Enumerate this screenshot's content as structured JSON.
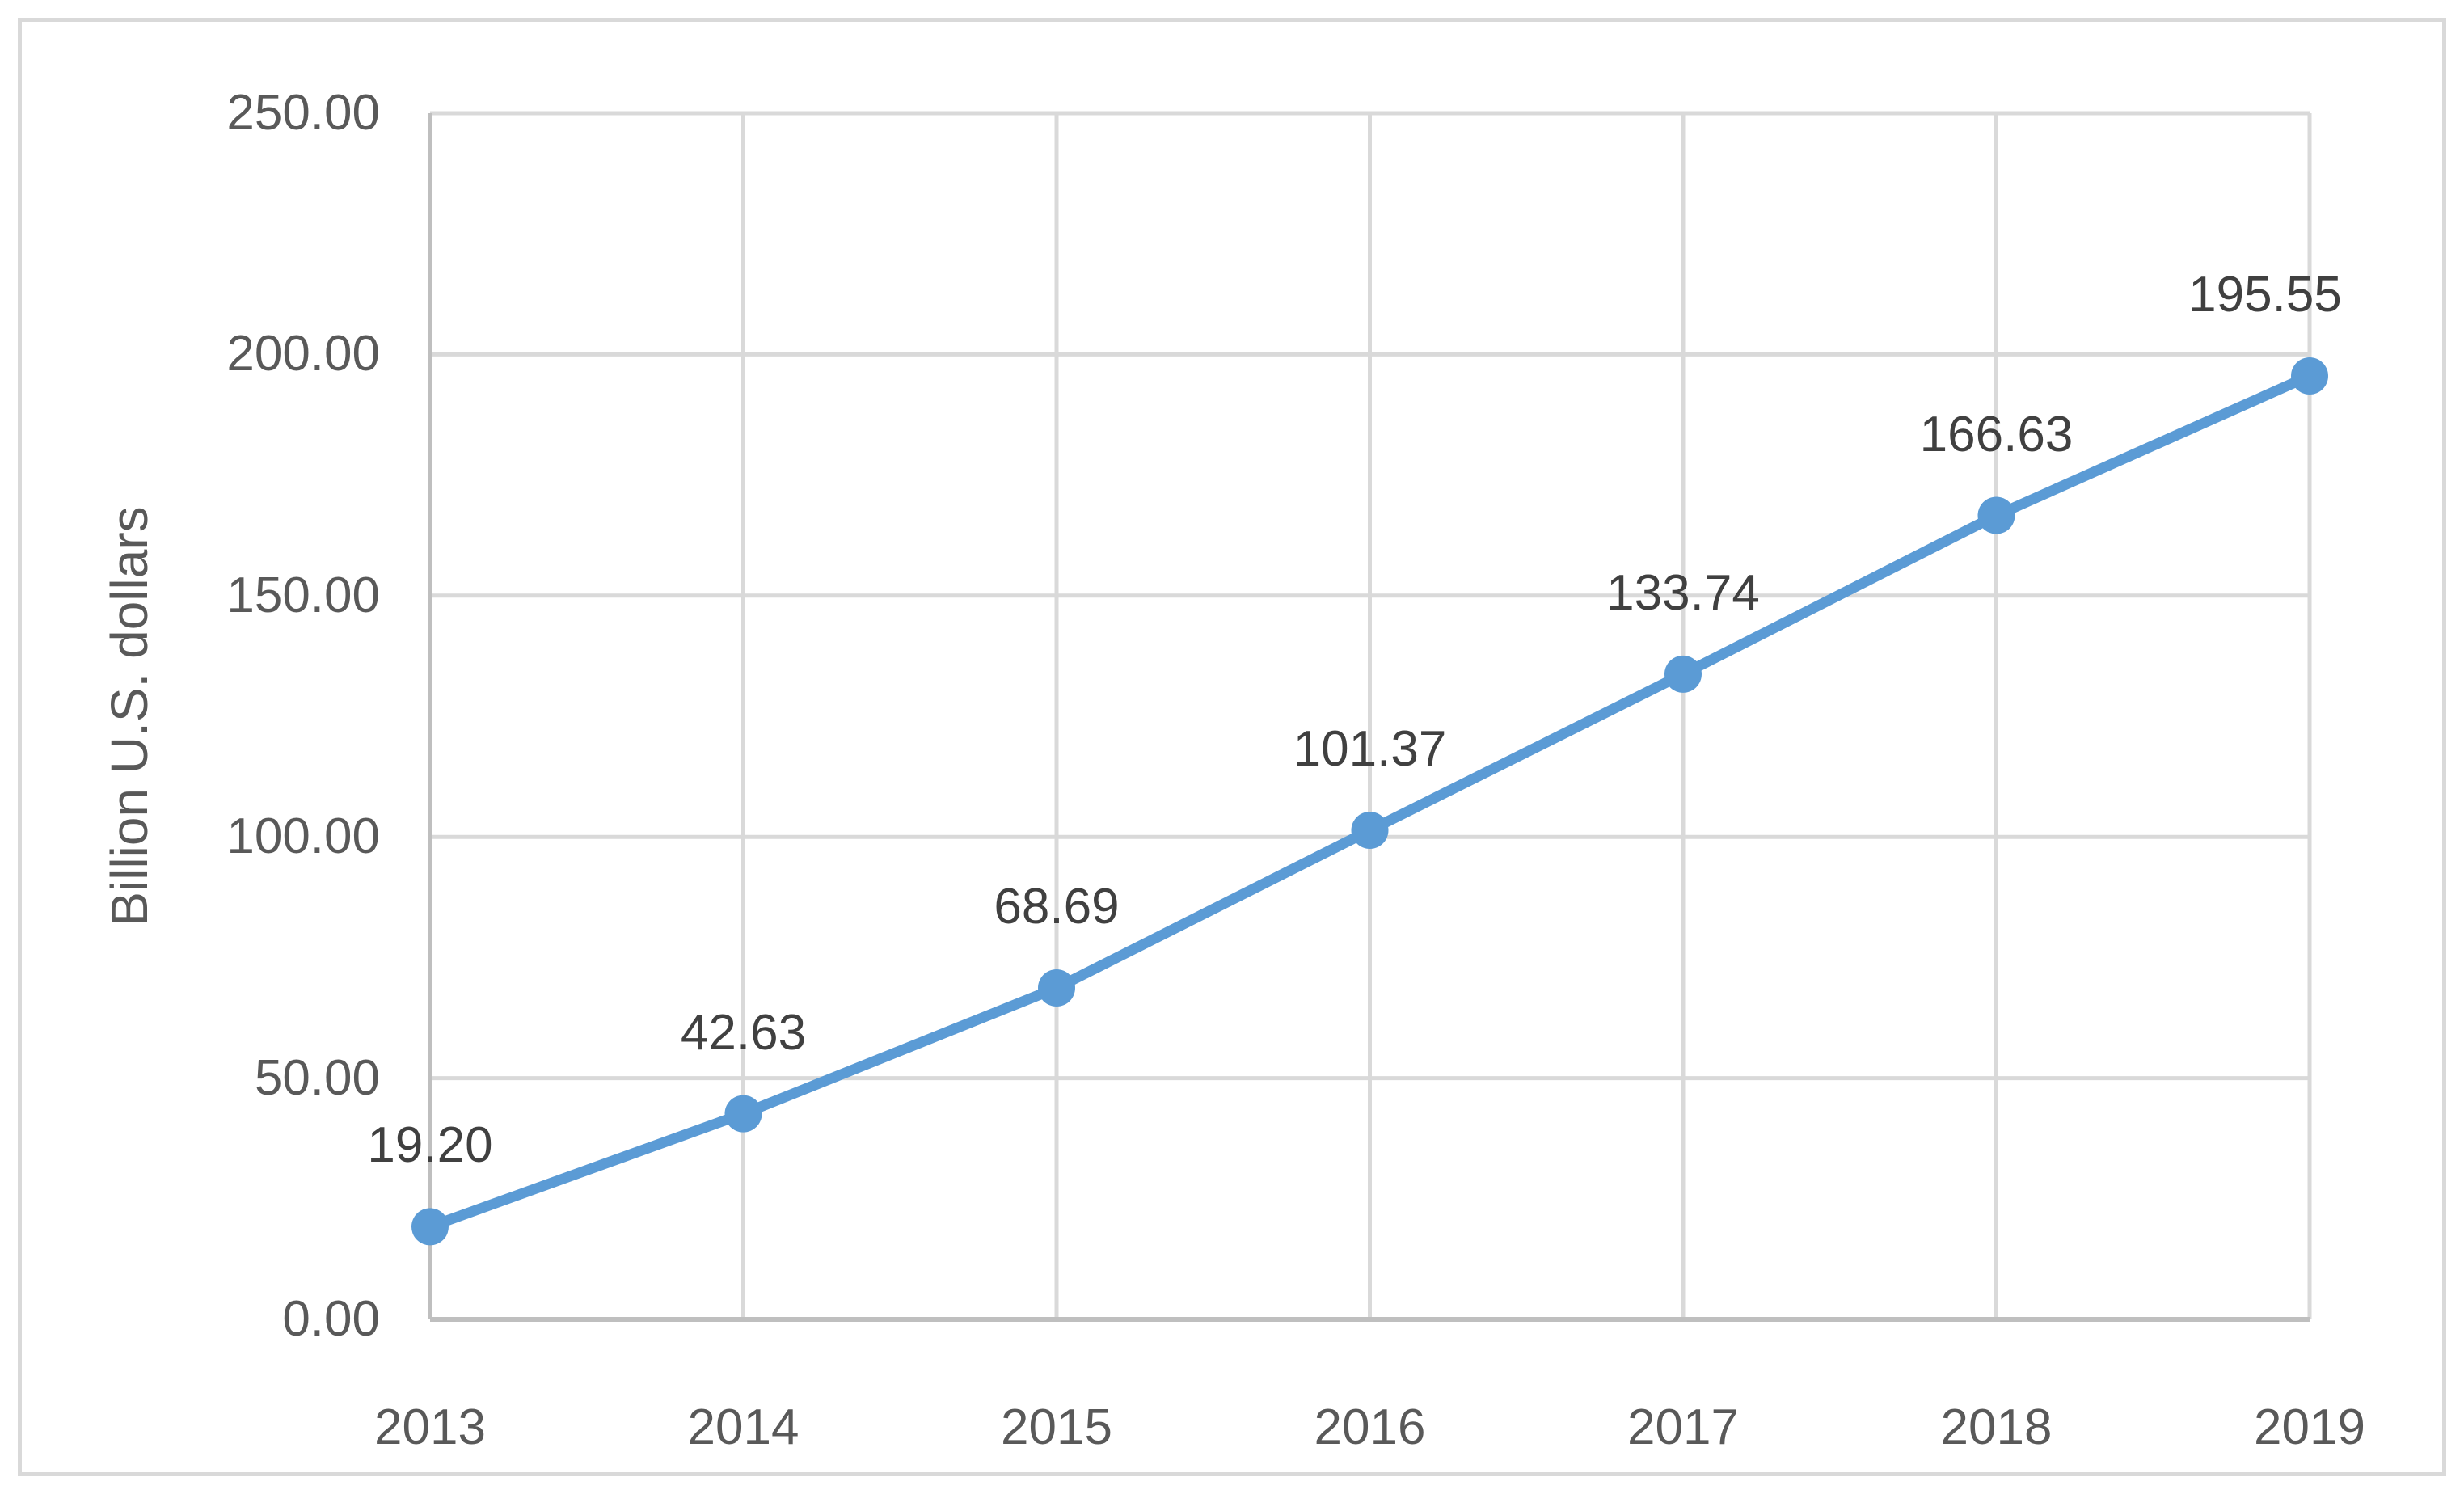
{
  "chart_data": {
    "type": "line",
    "title": "",
    "xlabel": "",
    "ylabel": "Billion U.S. dollars",
    "categories": [
      "2013",
      "2014",
      "2015",
      "2016",
      "2017",
      "2018",
      "2019"
    ],
    "values": [
      19.2,
      42.63,
      68.69,
      101.37,
      133.74,
      166.63,
      195.55
    ],
    "data_labels": [
      "19.20",
      "42.63",
      "68.69",
      "101.37",
      "133.74",
      "166.63",
      "195.55"
    ],
    "y_ticks": [
      "0.00",
      "50.00",
      "100.00",
      "150.00",
      "200.00",
      "250.00"
    ],
    "ylim": [
      0,
      250
    ],
    "y_step": 50,
    "grid": true,
    "legend": false,
    "marker": "circle",
    "colors": {
      "line": "#5B9BD5",
      "marker": "#5B9BD5",
      "data_label": "#404040",
      "tick_label": "#595959",
      "axis_title": "#595959",
      "gridline": "#D9D9D9",
      "axis_line": "#BFBFBF",
      "chart_border": "#D9D9D9",
      "background": "#FFFFFF"
    }
  }
}
